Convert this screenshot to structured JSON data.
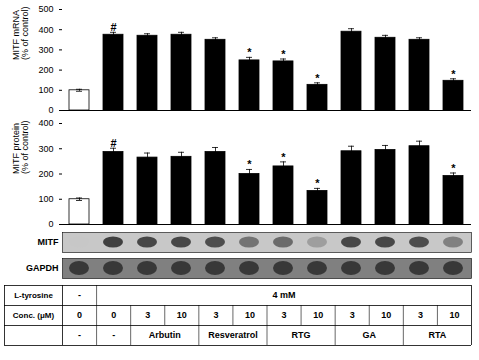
{
  "chart_data": [
    {
      "type": "bar",
      "categories": [
        null,
        null,
        null,
        null,
        null,
        null,
        null,
        null,
        null,
        null,
        null,
        null
      ],
      "values": [
        100,
        375,
        370,
        375,
        350,
        248,
        243,
        127,
        390,
        360,
        350,
        147
      ],
      "errors": [
        5,
        12,
        10,
        12,
        10,
        15,
        12,
        10,
        15,
        12,
        10,
        10
      ],
      "annotations": [
        null,
        "#",
        null,
        null,
        null,
        "*",
        "*",
        "*",
        null,
        null,
        null,
        "*"
      ],
      "colors": [
        "white",
        "black",
        "black",
        "black",
        "black",
        "black",
        "black",
        "black",
        "black",
        "black",
        "black",
        "black"
      ],
      "ylabel": "MITF mRNA\n(% of control)",
      "ylim": [
        0,
        500
      ],
      "yticks": [
        0,
        100,
        200,
        300,
        400,
        500
      ],
      "grid": false,
      "tick_labels": "y"
    },
    {
      "type": "bar",
      "categories": [
        null,
        null,
        null,
        null,
        null,
        null,
        null,
        null,
        null,
        null,
        null,
        null
      ],
      "values": [
        100,
        287,
        265,
        268,
        287,
        200,
        230,
        133,
        290,
        295,
        310,
        192
      ],
      "errors": [
        5,
        15,
        18,
        18,
        18,
        18,
        18,
        10,
        20,
        18,
        20,
        12
      ],
      "annotations": [
        null,
        "#",
        null,
        null,
        null,
        "*",
        "*",
        "*",
        null,
        null,
        null,
        "*"
      ],
      "colors": [
        "white",
        "black",
        "black",
        "black",
        "black",
        "black",
        "black",
        "black",
        "black",
        "black",
        "black",
        "black"
      ],
      "ylabel": "MITF protein\n(% of control)",
      "ylim": [
        0,
        400
      ],
      "yticks": [
        0,
        100,
        200,
        300,
        400
      ],
      "grid": false,
      "tick_labels": "y"
    },
    {
      "type": "blot",
      "series": [
        {
          "name": "MITF",
          "color": "#c8c8c8",
          "values": [
            0.78,
            0.25,
            0.28,
            0.28,
            0.3,
            0.45,
            0.42,
            0.62,
            0.28,
            0.28,
            0.3,
            0.5
          ]
        },
        {
          "name": "GAPDH",
          "color": "#808080",
          "values": [
            0.22,
            0.22,
            0.22,
            0.22,
            0.22,
            0.22,
            0.22,
            0.22,
            0.22,
            0.22,
            0.22,
            0.22
          ]
        }
      ]
    },
    {
      "type": "table",
      "rows": [
        {
          "name": "L-tyrosine",
          "cells": [
            {
              "text": "-",
              "span": 1
            },
            {
              "text": "4 mM",
              "span": 11
            }
          ]
        },
        {
          "name": "Conc. (μM)",
          "values": [
            0,
            0,
            3,
            10,
            3,
            10,
            3,
            10,
            3,
            10,
            3,
            10
          ]
        },
        {
          "cells": [
            {
              "text": "-",
              "span": 1
            },
            {
              "text": "-",
              "span": 1
            },
            {
              "text": "Arbutin",
              "span": 2
            },
            {
              "text": "Resveratrol",
              "span": 2
            },
            {
              "text": "RTG",
              "span": 2
            },
            {
              "text": "GA",
              "span": 2
            },
            {
              "text": "RTA",
              "span": 2
            }
          ]
        }
      ]
    }
  ]
}
